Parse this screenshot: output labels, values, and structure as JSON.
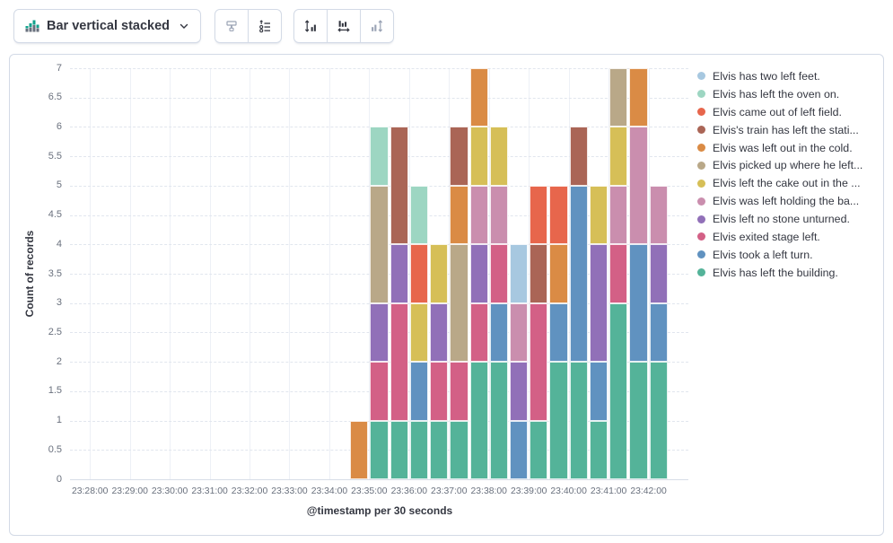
{
  "toolbar": {
    "chart_type": {
      "label": "Bar vertical stacked",
      "icon": "bar-vertical-stacked-icon"
    },
    "groups": [
      {
        "name": "display-options",
        "buttons": [
          {
            "name": "visual-options",
            "icon": "paint-roller-icon",
            "disabled": true
          },
          {
            "name": "legend-settings",
            "icon": "legend-list-icon",
            "disabled": false
          }
        ]
      },
      {
        "name": "axes",
        "buttons": [
          {
            "name": "left-axis-settings",
            "icon": "axis-left-icon",
            "disabled": false
          },
          {
            "name": "bottom-axis-settings",
            "icon": "axis-bottom-icon",
            "disabled": false
          },
          {
            "name": "right-axis-settings",
            "icon": "axis-right-icon",
            "disabled": true
          }
        ]
      }
    ]
  },
  "chart_data": {
    "type": "bar",
    "stacked": true,
    "orientation": "vertical",
    "ylabel": "Count of records",
    "xlabel": "@timestamp per 30 seconds",
    "ylim": [
      0,
      7
    ],
    "y_tick_step": 0.5,
    "grid": true,
    "legend_position": "right",
    "x_domain": [
      "23:27:30",
      "23:43:00"
    ],
    "bar_interval_seconds": 30,
    "x_ticks": [
      "23:28:00",
      "23:29:00",
      "23:30:00",
      "23:31:00",
      "23:32:00",
      "23:33:00",
      "23:34:00",
      "23:35:00",
      "23:36:00",
      "23:37:00",
      "23:38:00",
      "23:39:00",
      "23:40:00",
      "23:41:00",
      "23:42:00"
    ],
    "x": [
      "23:34:30",
      "23:35:00",
      "23:35:30",
      "23:36:00",
      "23:36:30",
      "23:37:00",
      "23:37:30",
      "23:38:00",
      "23:38:30",
      "23:39:00",
      "23:39:30",
      "23:40:00",
      "23:40:30",
      "23:41:00",
      "23:41:30",
      "23:42:00"
    ],
    "series": [
      {
        "label": "Elvis has two left feet.",
        "color": "#A7C8E0",
        "values": [
          0,
          0,
          0,
          0,
          0,
          0,
          0,
          0,
          1,
          0,
          0,
          0,
          0,
          0,
          0,
          0
        ]
      },
      {
        "label": "Elvis has left the oven on.",
        "color": "#9DD6C2",
        "values": [
          0,
          1,
          0,
          1,
          0,
          0,
          0,
          0,
          0,
          0,
          0,
          0,
          0,
          0,
          0,
          0
        ]
      },
      {
        "label": "Elvis came out of left field.",
        "color": "#E7664C",
        "values": [
          0,
          0,
          0,
          1,
          0,
          0,
          0,
          0,
          0,
          1,
          1,
          0,
          0,
          0,
          0,
          0
        ]
      },
      {
        "label": "Elvis's train has left the stati...",
        "color": "#AA6556",
        "values": [
          0,
          0,
          2,
          0,
          0,
          1,
          0,
          0,
          0,
          1,
          0,
          1,
          0,
          0,
          0,
          0
        ]
      },
      {
        "label": "Elvis was left out in the cold.",
        "color": "#DA8B45",
        "values": [
          1,
          0,
          0,
          0,
          0,
          1,
          1,
          0,
          0,
          0,
          1,
          0,
          0,
          0,
          1,
          0
        ]
      },
      {
        "label": "Elvis picked up where he left...",
        "color": "#B9A888",
        "values": [
          0,
          2,
          0,
          0,
          0,
          2,
          0,
          0,
          0,
          0,
          0,
          0,
          0,
          1,
          0,
          0
        ]
      },
      {
        "label": "Elvis left the cake out in the ...",
        "color": "#D6BF57",
        "values": [
          0,
          0,
          0,
          1,
          1,
          0,
          1,
          1,
          0,
          0,
          0,
          0,
          1,
          1,
          0,
          0
        ]
      },
      {
        "label": "Elvis was left holding the ba...",
        "color": "#CA8EAE",
        "values": [
          0,
          0,
          0,
          0,
          0,
          0,
          1,
          1,
          1,
          0,
          0,
          0,
          0,
          1,
          2,
          1
        ]
      },
      {
        "label": "Elvis left no stone unturned.",
        "color": "#9170B8",
        "values": [
          0,
          1,
          1,
          0,
          1,
          0,
          1,
          0,
          1,
          0,
          0,
          0,
          2,
          0,
          0,
          1
        ]
      },
      {
        "label": "Elvis exited stage left.",
        "color": "#D36086",
        "values": [
          0,
          1,
          2,
          0,
          1,
          1,
          1,
          1,
          0,
          2,
          0,
          0,
          0,
          1,
          0,
          0
        ]
      },
      {
        "label": "Elvis took a left turn.",
        "color": "#6092C0",
        "values": [
          0,
          0,
          0,
          1,
          0,
          0,
          0,
          1,
          1,
          0,
          1,
          3,
          1,
          0,
          2,
          1
        ]
      },
      {
        "label": "Elvis has left the building.",
        "color": "#54B399",
        "values": [
          0,
          1,
          1,
          1,
          1,
          1,
          2,
          2,
          0,
          1,
          2,
          2,
          1,
          3,
          2,
          2
        ]
      }
    ]
  }
}
